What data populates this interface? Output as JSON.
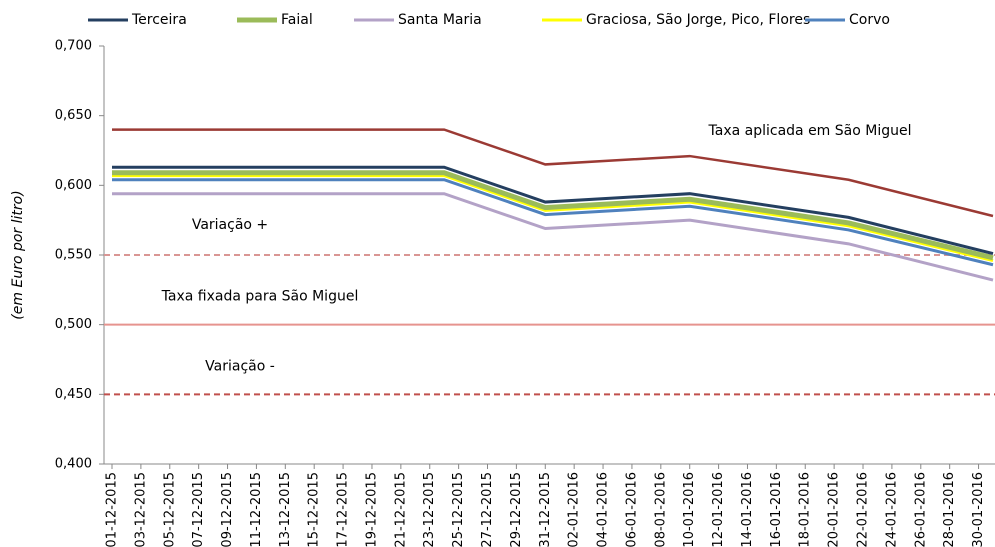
{
  "chart_data": {
    "type": "line",
    "y_axis_label": "(em Euro por litro)",
    "x": [
      "01-12-2015",
      "24-12-2015",
      "31-12-2015",
      "10-01-2016",
      "21-01-2016",
      "31-01-2016"
    ],
    "xlim": [
      "01-12-2015",
      "31-01-2016"
    ],
    "xticks": [
      "01-12-2015",
      "03-12-2015",
      "05-12-2015",
      "07-12-2015",
      "09-12-2015",
      "11-12-2015",
      "13-12-2015",
      "15-12-2015",
      "17-12-2015",
      "19-12-2015",
      "21-12-2015",
      "23-12-2015",
      "25-12-2015",
      "27-12-2015",
      "29-12-2015",
      "31-12-2015",
      "02-01-2016",
      "04-01-2016",
      "06-01-2016",
      "08-01-2016",
      "10-01-2016",
      "12-01-2016",
      "14-01-2016",
      "16-01-2016",
      "18-01-2016",
      "20-01-2016",
      "22-01-2016",
      "24-01-2016",
      "26-01-2016",
      "28-01-2016",
      "30-01-2016"
    ],
    "ylim": [
      0.4,
      0.7
    ],
    "yticks": [
      {
        "value": 0.4,
        "label": "0,400"
      },
      {
        "value": 0.45,
        "label": "0,450"
      },
      {
        "value": 0.5,
        "label": "0,500"
      },
      {
        "value": 0.55,
        "label": "0,550"
      },
      {
        "value": 0.6,
        "label": "0,600"
      },
      {
        "value": 0.65,
        "label": "0,650"
      },
      {
        "value": 0.7,
        "label": "0,700"
      }
    ],
    "series": [
      {
        "name": "Terceira",
        "color": "#243f60",
        "width": 3,
        "values": [
          0.613,
          0.613,
          0.588,
          0.594,
          0.577,
          0.551
        ]
      },
      {
        "name": "Faial",
        "color": "#9bbb59",
        "width": 5,
        "values": [
          0.609,
          0.609,
          0.584,
          0.59,
          0.573,
          0.548
        ]
      },
      {
        "name": "Santa Maria",
        "color": "#b3a2c7",
        "width": 3,
        "values": [
          0.594,
          0.594,
          0.569,
          0.575,
          0.558,
          0.532
        ]
      },
      {
        "name": "Graciosa, São Jorge, Pico, Flores",
        "color": "#ffff00",
        "width": 3,
        "values": [
          0.607,
          0.607,
          0.582,
          0.588,
          0.571,
          0.546
        ]
      },
      {
        "name": "Corvo",
        "color": "#4f81bd",
        "width": 3,
        "values": [
          0.604,
          0.604,
          0.579,
          0.585,
          0.568,
          0.543
        ]
      }
    ],
    "annotated_series": [
      {
        "label": "Taxa aplicada em São Miguel",
        "color": "#9b3a34",
        "values": [
          0.64,
          0.64,
          0.615,
          0.621,
          0.604,
          0.578
        ]
      }
    ],
    "hlines": [
      {
        "value": 0.55,
        "label": "Variação +",
        "color": "#d99694",
        "dashed": true
      },
      {
        "value": 0.5,
        "label": "Taxa fixada para São Miguel",
        "color": "#e6948f",
        "dashed": false
      },
      {
        "value": 0.45,
        "label": "Variação -",
        "color": "#c0504d",
        "dashed": true
      }
    ]
  }
}
